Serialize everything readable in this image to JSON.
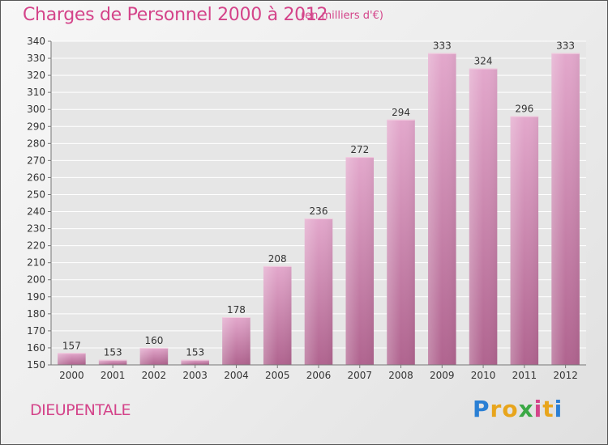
{
  "header": {
    "title": "Charges de Personnel 2000 à 2012",
    "subtitle": "(en milliers d'€)"
  },
  "footer": {
    "commune": "DIEUPENTALE",
    "logo_text": "Proxiti",
    "logo_letters": [
      {
        "char": "P",
        "color": "#2a7fd4"
      },
      {
        "char": "r",
        "color": "#e8a51c"
      },
      {
        "char": "o",
        "color": "#e8a51c"
      },
      {
        "char": "x",
        "color": "#3aa845"
      },
      {
        "char": "i",
        "color": "#d4448a"
      },
      {
        "char": "t",
        "color": "#e8a51c"
      },
      {
        "char": "i",
        "color": "#2a7fd4"
      }
    ]
  },
  "chart_data": {
    "type": "bar",
    "title": "Charges de Personnel 2000 à 2012",
    "subtitle": "(en milliers d'€)",
    "categories": [
      "2000",
      "2001",
      "2002",
      "2003",
      "2004",
      "2005",
      "2006",
      "2007",
      "2008",
      "2009",
      "2010",
      "2011",
      "2012"
    ],
    "values": [
      157,
      153,
      160,
      153,
      178,
      208,
      236,
      272,
      294,
      333,
      324,
      296,
      333
    ],
    "ylim": [
      150,
      340
    ],
    "yticks": [
      150,
      160,
      170,
      180,
      190,
      200,
      210,
      220,
      230,
      240,
      250,
      260,
      270,
      280,
      290,
      300,
      310,
      320,
      330,
      340
    ],
    "grid": true,
    "legend": "none",
    "bar_color": "#c0679a",
    "grid_color": "#ffffff"
  }
}
